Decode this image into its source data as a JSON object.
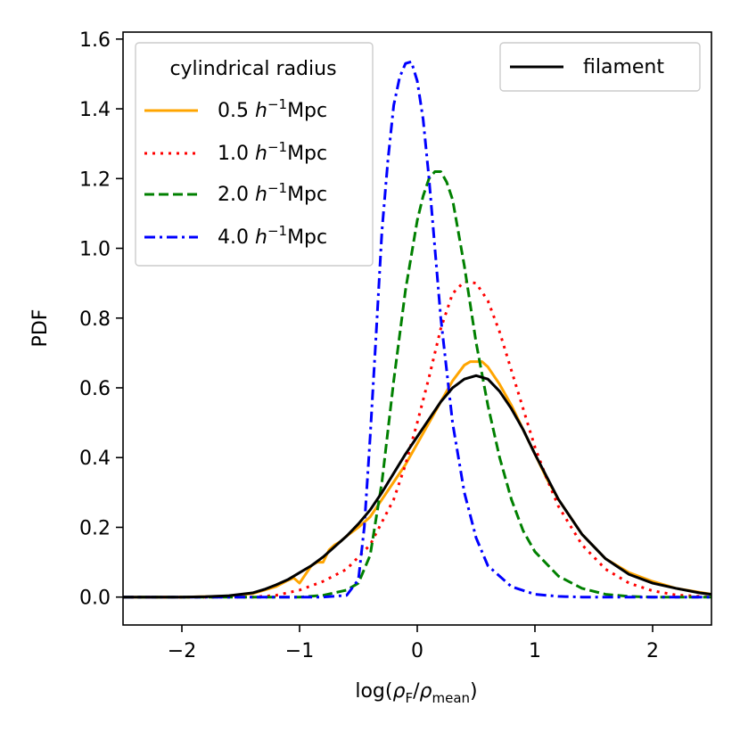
{
  "chart_data": {
    "type": "line",
    "title": "",
    "xlabel": "log(ρ_F/ρ_mean)",
    "xlabel_parts": {
      "prefix": "log(",
      "rho": "ρ",
      "sub1": "F",
      "slash": "/",
      "sub2": "mean",
      "suffix": ")"
    },
    "ylabel": "PDF",
    "xlim": [
      -2.5,
      2.5
    ],
    "ylim": [
      -0.08,
      1.62
    ],
    "xticks": [
      -2,
      -1,
      0,
      1,
      2
    ],
    "xtick_labels": [
      "−2",
      "−1",
      "0",
      "1",
      "2"
    ],
    "yticks": [
      0.0,
      0.2,
      0.4,
      0.6,
      0.8,
      1.0,
      1.2,
      1.4,
      1.6
    ],
    "ytick_labels": [
      "0.0",
      "0.2",
      "0.4",
      "0.6",
      "0.8",
      "1.0",
      "1.2",
      "1.4",
      "1.6"
    ],
    "grid": false,
    "legend_radius": {
      "title": "cylindrical radius",
      "placement": "top-left",
      "entries": [
        {
          "value": "0.5",
          "unit": "Mpc",
          "h": "h",
          "exp": "−1"
        },
        {
          "value": "1.0",
          "unit": "Mpc",
          "h": "h",
          "exp": "−1"
        },
        {
          "value": "2.0",
          "unit": "Mpc",
          "h": "h",
          "exp": "−1"
        },
        {
          "value": "4.0",
          "unit": "Mpc",
          "h": "h",
          "exp": "−1"
        }
      ]
    },
    "legend_filament": {
      "label": "filament",
      "placement": "top-right"
    },
    "series": [
      {
        "name": "0.5 h^-1 Mpc",
        "color": "#ffa500",
        "dash": "solid",
        "x": [
          -2.5,
          -2.0,
          -1.6,
          -1.4,
          -1.3,
          -1.2,
          -1.1,
          -1.05,
          -1.0,
          -0.95,
          -0.9,
          -0.85,
          -0.8,
          -0.75,
          -0.7,
          -0.65,
          -0.6,
          -0.5,
          -0.4,
          -0.3,
          -0.2,
          -0.1,
          0.0,
          0.1,
          0.2,
          0.3,
          0.4,
          0.45,
          0.5,
          0.55,
          0.6,
          0.7,
          0.8,
          0.9,
          1.0,
          1.1,
          1.2,
          1.4,
          1.6,
          1.8,
          2.0,
          2.2,
          2.5
        ],
        "y": [
          0.0,
          0.0,
          0.003,
          0.01,
          0.02,
          0.03,
          0.048,
          0.055,
          0.04,
          0.065,
          0.09,
          0.1,
          0.1,
          0.135,
          0.15,
          0.16,
          0.175,
          0.2,
          0.23,
          0.28,
          0.33,
          0.38,
          0.44,
          0.5,
          0.56,
          0.62,
          0.665,
          0.675,
          0.675,
          0.675,
          0.66,
          0.61,
          0.55,
          0.48,
          0.41,
          0.34,
          0.28,
          0.18,
          0.11,
          0.07,
          0.045,
          0.025,
          0.008
        ]
      },
      {
        "name": "1.0 h^-1 Mpc",
        "color": "#ff0000",
        "dash": "dotted",
        "x": [
          -2.5,
          -1.4,
          -1.2,
          -1.0,
          -0.8,
          -0.6,
          -0.4,
          -0.2,
          -0.1,
          0.0,
          0.1,
          0.2,
          0.3,
          0.4,
          0.5,
          0.6,
          0.7,
          0.8,
          0.9,
          1.0,
          1.1,
          1.2,
          1.4,
          1.6,
          1.8,
          2.0,
          2.2,
          2.5
        ],
        "y": [
          0.0,
          0.0,
          0.005,
          0.02,
          0.045,
          0.08,
          0.15,
          0.28,
          0.38,
          0.5,
          0.63,
          0.77,
          0.87,
          0.905,
          0.9,
          0.85,
          0.76,
          0.65,
          0.54,
          0.43,
          0.34,
          0.26,
          0.15,
          0.08,
          0.04,
          0.018,
          0.006,
          0.0
        ]
      },
      {
        "name": "2.0 h^-1 Mpc",
        "color": "#008000",
        "dash": "dashed",
        "x": [
          -2.5,
          -1.0,
          -0.8,
          -0.6,
          -0.5,
          -0.4,
          -0.3,
          -0.2,
          -0.1,
          0.0,
          0.05,
          0.1,
          0.15,
          0.2,
          0.25,
          0.3,
          0.4,
          0.5,
          0.6,
          0.7,
          0.8,
          0.9,
          1.0,
          1.2,
          1.4,
          1.6,
          1.8,
          2.0,
          2.5
        ],
        "y": [
          0.0,
          0.0,
          0.005,
          0.02,
          0.04,
          0.12,
          0.33,
          0.62,
          0.88,
          1.08,
          1.15,
          1.2,
          1.22,
          1.22,
          1.19,
          1.14,
          0.95,
          0.73,
          0.55,
          0.4,
          0.28,
          0.19,
          0.13,
          0.06,
          0.025,
          0.008,
          0.002,
          0.0,
          0.0
        ]
      },
      {
        "name": "4.0 h^-1 Mpc",
        "color": "#0000ff",
        "dash": "dashdot",
        "x": [
          -2.5,
          -0.8,
          -0.6,
          -0.5,
          -0.45,
          -0.4,
          -0.35,
          -0.3,
          -0.25,
          -0.2,
          -0.15,
          -0.1,
          -0.05,
          0.0,
          0.05,
          0.1,
          0.15,
          0.2,
          0.3,
          0.4,
          0.5,
          0.6,
          0.8,
          1.0,
          1.2,
          1.4,
          1.6,
          2.0,
          2.5
        ],
        "y": [
          0.0,
          0.0,
          0.005,
          0.05,
          0.2,
          0.46,
          0.75,
          1.05,
          1.25,
          1.41,
          1.49,
          1.53,
          1.535,
          1.48,
          1.37,
          1.2,
          1.0,
          0.8,
          0.5,
          0.3,
          0.17,
          0.09,
          0.03,
          0.008,
          0.002,
          0.0,
          0.0,
          0.0,
          0.0
        ]
      },
      {
        "name": "filament",
        "color": "#000000",
        "dash": "solid",
        "x": [
          -2.5,
          -2.0,
          -1.8,
          -1.6,
          -1.4,
          -1.3,
          -1.2,
          -1.1,
          -1.0,
          -0.9,
          -0.8,
          -0.7,
          -0.6,
          -0.5,
          -0.4,
          -0.3,
          -0.2,
          -0.1,
          0.0,
          0.1,
          0.2,
          0.3,
          0.4,
          0.5,
          0.6,
          0.7,
          0.8,
          0.9,
          1.0,
          1.2,
          1.4,
          1.6,
          1.8,
          2.0,
          2.2,
          2.4,
          2.5
        ],
        "y": [
          0.0,
          0.0,
          0.001,
          0.004,
          0.012,
          0.022,
          0.035,
          0.05,
          0.07,
          0.09,
          0.115,
          0.145,
          0.175,
          0.21,
          0.25,
          0.3,
          0.355,
          0.41,
          0.46,
          0.51,
          0.56,
          0.6,
          0.625,
          0.635,
          0.625,
          0.59,
          0.54,
          0.48,
          0.41,
          0.28,
          0.18,
          0.11,
          0.065,
          0.04,
          0.025,
          0.012,
          0.008
        ]
      }
    ]
  }
}
